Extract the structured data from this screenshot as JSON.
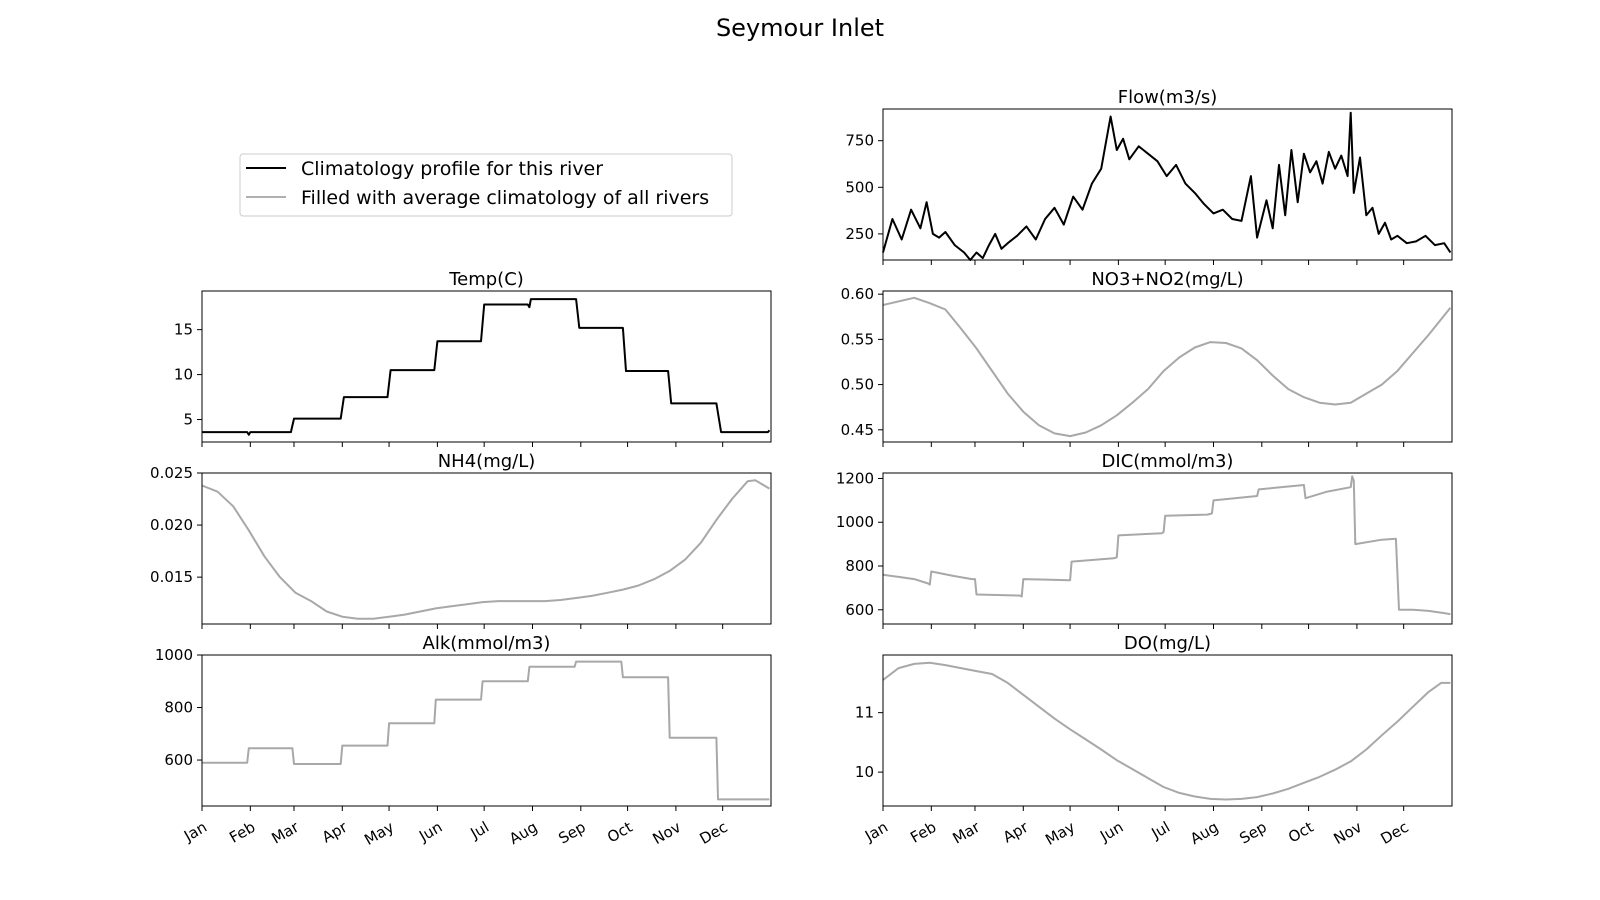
{
  "figure": {
    "title": "Seymour Inlet"
  },
  "legend": {
    "location": "upper-left",
    "entries": [
      {
        "label": "Climatology profile for this river",
        "color": "#000000"
      },
      {
        "label": "Filled with average climatology of all rivers",
        "color": "#b0b0b0"
      }
    ]
  },
  "x_axis": {
    "tick_labels": [
      "Jan",
      "Feb",
      "Mar",
      "Apr",
      "May",
      "Jun",
      "Jul",
      "Aug",
      "Sep",
      "Oct",
      "Nov",
      "Dec"
    ],
    "tick_days": [
      0,
      31,
      59,
      90,
      120,
      151,
      181,
      212,
      243,
      273,
      304,
      334
    ],
    "days_in_year": 365,
    "label_rotation_deg": 30
  },
  "chart_data": [
    {
      "id": "flow",
      "type": "line",
      "title": "Flow(m3/s)",
      "color": "#000000",
      "ylim": [
        110,
        920
      ],
      "yticks": [
        250,
        500,
        750
      ],
      "ytick_labels": [
        "250",
        "500",
        "750"
      ],
      "x": [
        0,
        6,
        12,
        18,
        24,
        28,
        32,
        36,
        40,
        46,
        52,
        56,
        60,
        64,
        68,
        72,
        76,
        80,
        86,
        92,
        98,
        104,
        110,
        116,
        122,
        128,
        134,
        140,
        146,
        150,
        154,
        158,
        164,
        170,
        176,
        182,
        188,
        194,
        200,
        206,
        212,
        218,
        224,
        230,
        236,
        240,
        246,
        250,
        254,
        258,
        262,
        266,
        270,
        274,
        278,
        282,
        286,
        290,
        294,
        298,
        300,
        302,
        306,
        310,
        314,
        318,
        322,
        326,
        330,
        336,
        342,
        348,
        354,
        360,
        364
      ],
      "y": [
        150,
        330,
        220,
        380,
        280,
        420,
        250,
        230,
        260,
        190,
        150,
        110,
        150,
        120,
        190,
        250,
        170,
        200,
        240,
        290,
        220,
        330,
        390,
        300,
        450,
        380,
        520,
        600,
        880,
        700,
        760,
        650,
        720,
        680,
        640,
        560,
        620,
        520,
        470,
        410,
        360,
        380,
        330,
        320,
        560,
        230,
        430,
        280,
        620,
        350,
        700,
        420,
        680,
        580,
        640,
        520,
        690,
        600,
        670,
        560,
        900,
        470,
        660,
        350,
        390,
        250,
        310,
        220,
        240,
        200,
        210,
        240,
        190,
        200,
        150
      ]
    },
    {
      "id": "temp",
      "type": "line",
      "title": "Temp(C)",
      "color": "#000000",
      "ylim": [
        2.5,
        19.3
      ],
      "yticks": [
        5,
        10,
        15
      ],
      "ytick_labels": [
        "5",
        "10",
        "15"
      ],
      "x": [
        0,
        29,
        30,
        31,
        57,
        59,
        89,
        91,
        119,
        121,
        149,
        151,
        179,
        181,
        209,
        210,
        211,
        212,
        240,
        242,
        270,
        272,
        299,
        301,
        330,
        333,
        363,
        364
      ],
      "y": [
        3.6,
        3.6,
        3.3,
        3.6,
        3.6,
        5.1,
        5.1,
        7.5,
        7.5,
        10.5,
        10.5,
        13.7,
        13.7,
        17.8,
        17.8,
        17.5,
        18.4,
        18.4,
        18.4,
        15.2,
        15.2,
        10.4,
        10.4,
        6.8,
        6.8,
        3.6,
        3.6,
        3.8
      ]
    },
    {
      "id": "no3",
      "type": "line",
      "title": "NO3+NO2(mg/L)",
      "color": "#a8a8a8",
      "ylim": [
        0.4365,
        0.6035
      ],
      "yticks": [
        0.45,
        0.5,
        0.55,
        0.6
      ],
      "ytick_labels": [
        "0.45",
        "0.50",
        "0.55",
        "0.60"
      ],
      "x": [
        0,
        10,
        20,
        30,
        40,
        50,
        60,
        70,
        80,
        90,
        100,
        110,
        120,
        130,
        140,
        150,
        160,
        170,
        180,
        190,
        200,
        210,
        220,
        230,
        240,
        250,
        260,
        270,
        280,
        290,
        300,
        310,
        320,
        330,
        340,
        350,
        364
      ],
      "y": [
        0.588,
        0.592,
        0.596,
        0.59,
        0.583,
        0.562,
        0.54,
        0.515,
        0.49,
        0.47,
        0.455,
        0.446,
        0.443,
        0.447,
        0.455,
        0.466,
        0.48,
        0.495,
        0.515,
        0.53,
        0.541,
        0.547,
        0.546,
        0.54,
        0.527,
        0.51,
        0.495,
        0.486,
        0.48,
        0.478,
        0.48,
        0.49,
        0.5,
        0.515,
        0.535,
        0.555,
        0.585
      ]
    },
    {
      "id": "nh4",
      "type": "line",
      "title": "NH4(mg/L)",
      "color": "#a8a8a8",
      "ylim": [
        0.0105,
        0.025
      ],
      "yticks": [
        0.015,
        0.02,
        0.025
      ],
      "ytick_labels": [
        "0.015",
        "0.020",
        "0.025"
      ],
      "x": [
        0,
        10,
        20,
        30,
        40,
        50,
        60,
        70,
        80,
        90,
        100,
        110,
        120,
        130,
        140,
        150,
        160,
        170,
        180,
        190,
        200,
        210,
        220,
        230,
        240,
        250,
        260,
        270,
        280,
        290,
        300,
        310,
        320,
        330,
        340,
        350,
        355,
        364
      ],
      "y": [
        0.0238,
        0.0232,
        0.0218,
        0.0195,
        0.017,
        0.015,
        0.0135,
        0.0127,
        0.0117,
        0.0112,
        0.011,
        0.011,
        0.0112,
        0.0114,
        0.0117,
        0.012,
        0.0122,
        0.0124,
        0.0126,
        0.0127,
        0.0127,
        0.0127,
        0.0127,
        0.0128,
        0.013,
        0.0132,
        0.0135,
        0.0138,
        0.0142,
        0.0148,
        0.0156,
        0.0167,
        0.0183,
        0.0205,
        0.0225,
        0.0242,
        0.0243,
        0.0235
      ]
    },
    {
      "id": "dic",
      "type": "line",
      "title": "DIC(mmol/m3)",
      "color": "#a8a8a8",
      "ylim": [
        535,
        1225
      ],
      "yticks": [
        600,
        800,
        1000,
        1200
      ],
      "ytick_labels": [
        "600",
        "800",
        "1000",
        "1200"
      ],
      "x": [
        0,
        10,
        20,
        29,
        30,
        31,
        45,
        57,
        59,
        60,
        88,
        89,
        90,
        105,
        119,
        120,
        121,
        148,
        150,
        151,
        179,
        180,
        181,
        208,
        211,
        212,
        240,
        241,
        270,
        271,
        285,
        300,
        301,
        302,
        303,
        320,
        329,
        331,
        340,
        350,
        360,
        364
      ],
      "y": [
        760,
        750,
        740,
        720,
        715,
        775,
        755,
        740,
        740,
        670,
        665,
        660,
        740,
        738,
        735,
        735,
        820,
        835,
        840,
        940,
        950,
        955,
        1030,
        1035,
        1040,
        1100,
        1120,
        1150,
        1170,
        1110,
        1140,
        1160,
        1210,
        1190,
        900,
        920,
        925,
        600,
        600,
        595,
        585,
        580
      ]
    },
    {
      "id": "alk",
      "type": "line",
      "title": "Alk(mmol/m3)",
      "color": "#a8a8a8",
      "ylim": [
        425,
        1000
      ],
      "yticks": [
        600,
        800,
        1000
      ],
      "ytick_labels": [
        "600",
        "800",
        "1000"
      ],
      "x": [
        0,
        29,
        30,
        58,
        59,
        60,
        89,
        90,
        119,
        120,
        149,
        150,
        179,
        180,
        209,
        210,
        239,
        240,
        269,
        270,
        299,
        300,
        330,
        331,
        364
      ],
      "y": [
        590,
        590,
        645,
        645,
        585,
        585,
        585,
        655,
        655,
        740,
        740,
        830,
        830,
        900,
        900,
        955,
        955,
        975,
        975,
        915,
        915,
        685,
        685,
        450,
        450
      ]
    },
    {
      "id": "do",
      "type": "line",
      "title": "DO(mg/L)",
      "color": "#a8a8a8",
      "ylim": [
        9.43,
        11.97
      ],
      "yticks": [
        10,
        11
      ],
      "ytick_labels": [
        "10",
        "11"
      ],
      "x": [
        0,
        10,
        20,
        30,
        40,
        50,
        60,
        70,
        80,
        90,
        100,
        110,
        120,
        130,
        140,
        150,
        160,
        170,
        180,
        190,
        200,
        210,
        220,
        230,
        240,
        250,
        260,
        270,
        280,
        290,
        300,
        310,
        320,
        330,
        340,
        350,
        358,
        364
      ],
      "y": [
        11.55,
        11.75,
        11.82,
        11.84,
        11.8,
        11.75,
        11.7,
        11.65,
        11.5,
        11.3,
        11.1,
        10.9,
        10.72,
        10.55,
        10.38,
        10.2,
        10.05,
        9.9,
        9.75,
        9.65,
        9.59,
        9.55,
        9.54,
        9.55,
        9.58,
        9.64,
        9.72,
        9.82,
        9.92,
        10.04,
        10.18,
        10.38,
        10.62,
        10.85,
        11.1,
        11.35,
        11.5,
        11.5
      ]
    }
  ]
}
